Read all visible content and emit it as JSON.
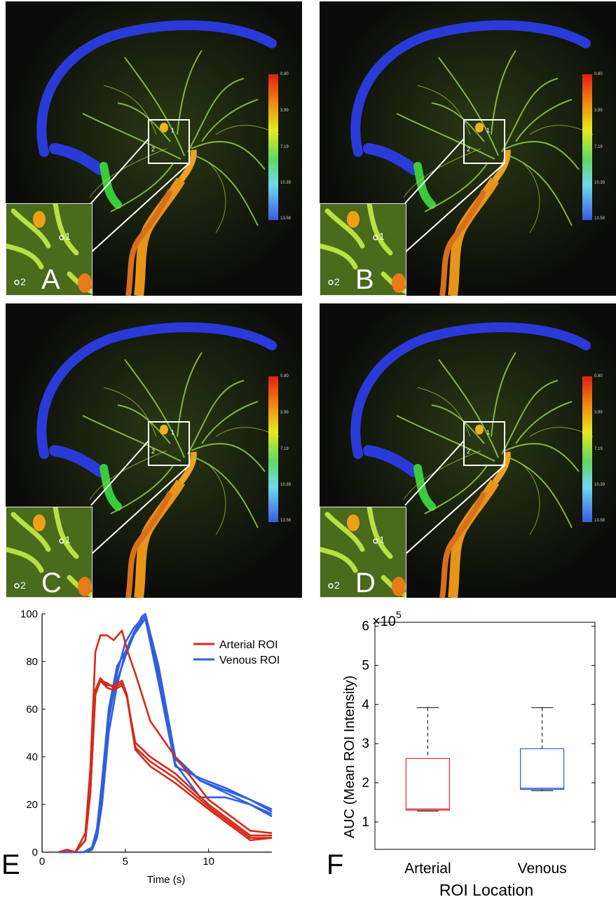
{
  "panels": [
    {
      "letter": "A",
      "roi1": "1",
      "roi2": "2"
    },
    {
      "letter": "B",
      "roi1": "1",
      "roi2": "2"
    },
    {
      "letter": "C",
      "roi1": "1",
      "roi2": "2"
    },
    {
      "letter": "D",
      "roi1": "1",
      "roi2": "2"
    }
  ],
  "colorbar_ticks": [
    "0.80",
    "3.99",
    "7.19",
    "10.39",
    "13.58"
  ],
  "colors": {
    "arterial": "#d42a1a",
    "venous": "#2f5fe0",
    "image_bg": "#0a0b0a"
  },
  "chart_data": [
    {
      "type": "line",
      "panel_label": "E",
      "xlabel": "Time (s)",
      "ylabel": "",
      "xlim": [
        0,
        13.8
      ],
      "ylim": [
        0,
        100
      ],
      "xticks": [
        0,
        5,
        10
      ],
      "yticks": [
        0,
        20,
        40,
        60,
        80,
        100
      ],
      "legend_position": "top-right",
      "legend": [
        "Arterial ROI",
        "Venous ROI"
      ],
      "series": [
        {
          "group": "arterial",
          "x": [
            1,
            1.5,
            2,
            2.6,
            2.9,
            3.2,
            3.5,
            3.9,
            4.3,
            4.8,
            5.1,
            5.6,
            6.5,
            8,
            10,
            12.5,
            13.8
          ],
          "y": [
            0,
            1,
            0,
            8,
            35,
            84,
            91,
            91,
            89,
            93,
            85,
            75,
            55,
            40,
            22,
            9,
            8
          ]
        },
        {
          "group": "arterial",
          "x": [
            1,
            1.5,
            2,
            2.6,
            2.9,
            3.2,
            3.5,
            3.9,
            4.3,
            4.8,
            5.1,
            5.6,
            6.5,
            8,
            10,
            12.5,
            13.8
          ],
          "y": [
            0,
            1,
            0,
            5,
            25,
            66,
            72,
            71,
            69,
            71,
            65,
            46,
            40,
            33,
            20,
            7,
            7
          ]
        },
        {
          "group": "arterial",
          "x": [
            1,
            1.5,
            2,
            2.6,
            2.9,
            3.2,
            3.5,
            3.9,
            4.3,
            4.8,
            5.1,
            5.6,
            6.5,
            8,
            10,
            12.5,
            13.8
          ],
          "y": [
            0,
            1,
            0,
            5,
            25,
            68,
            73,
            70,
            70,
            72,
            66,
            44,
            38,
            31,
            19,
            6,
            6
          ]
        },
        {
          "group": "arterial",
          "x": [
            1,
            1.5,
            2,
            2.6,
            2.9,
            3.2,
            3.5,
            3.9,
            4.3,
            4.8,
            5.1,
            5.6,
            6.5,
            8,
            10,
            12.5,
            13.8
          ],
          "y": [
            0,
            1,
            0,
            5,
            25,
            67,
            72,
            69,
            68,
            70,
            65,
            43,
            36,
            29,
            18,
            5,
            6
          ]
        },
        {
          "group": "venous",
          "x": [
            1,
            2.5,
            3,
            3.3,
            3.6,
            4,
            4.5,
            5,
            5.5,
            6,
            6.2,
            7,
            8,
            9.5,
            11,
            12.5,
            13.8
          ],
          "y": [
            0,
            0,
            2,
            10,
            30,
            60,
            78,
            84,
            92,
            99,
            100,
            78,
            40,
            30,
            26,
            22,
            18
          ]
        },
        {
          "group": "venous",
          "x": [
            1,
            2.5,
            3,
            3.3,
            3.6,
            4,
            4.5,
            5,
            5.5,
            6,
            6.2,
            7,
            8,
            9.5,
            11,
            12.5,
            13.8
          ],
          "y": [
            0,
            0,
            1,
            8,
            25,
            55,
            75,
            88,
            94,
            98,
            99,
            73,
            37,
            23,
            23,
            20,
            15
          ]
        },
        {
          "group": "venous",
          "x": [
            1,
            2.5,
            3,
            3.3,
            3.6,
            4,
            4.5,
            5,
            5.5,
            6,
            6.2,
            7,
            8,
            9.5,
            11,
            12.5,
            13.8
          ],
          "y": [
            0,
            0,
            1,
            6,
            20,
            50,
            70,
            84,
            92,
            97,
            98,
            75,
            39,
            30,
            25,
            20,
            16
          ]
        },
        {
          "group": "venous",
          "x": [
            1,
            2.5,
            3,
            3.3,
            3.6,
            4,
            4.5,
            5,
            5.5,
            6,
            6.2,
            7,
            8,
            9.5,
            11,
            12.5,
            13.8
          ],
          "y": [
            0,
            0,
            2,
            9,
            28,
            58,
            72,
            82,
            91,
            96,
            98,
            71,
            36,
            31,
            27,
            22,
            17
          ]
        }
      ]
    },
    {
      "type": "box",
      "panel_label": "F",
      "xlabel": "ROI Location",
      "ylabel": "AUC (Mean ROI Intensity)",
      "multiplier": "×10",
      "multiplier_exp": "5",
      "ylim": [
        0.3,
        6.1
      ],
      "yticks": [
        1,
        2,
        3,
        4,
        5,
        6
      ],
      "categories": [
        "Arterial",
        "Venous"
      ],
      "boxes": [
        {
          "name": "Arterial",
          "min": 1.28,
          "q1": 1.3,
          "median": 1.33,
          "q3": 2.62,
          "max": 3.92,
          "color": "#e0303a"
        },
        {
          "name": "Venous",
          "min": 1.8,
          "q1": 1.83,
          "median": 1.86,
          "q3": 2.87,
          "max": 3.92,
          "color": "#2f5fe0"
        }
      ]
    }
  ]
}
